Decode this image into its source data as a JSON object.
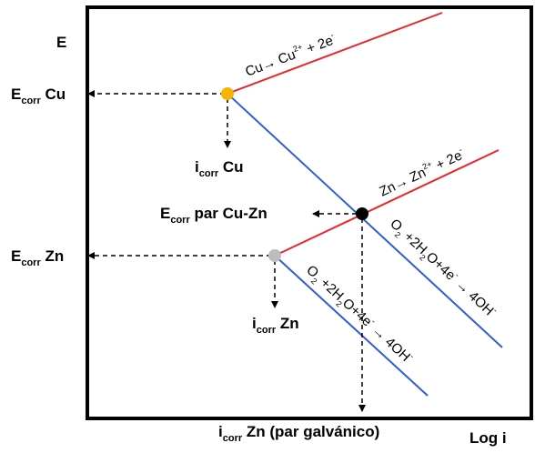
{
  "axes": {
    "y_label": "E",
    "x_label": "Log i"
  },
  "labels": {
    "ecorr_cu": {
      "main": "E",
      "sub": "corr",
      "rest": " Cu"
    },
    "ecorr_zn": {
      "main": "E",
      "sub": "corr",
      "rest": " Zn"
    },
    "icorr_cu": {
      "main": "i",
      "sub": "corr",
      "rest": " Cu"
    },
    "icorr_zn": {
      "main": "i",
      "sub": "corr",
      "rest": " Zn"
    },
    "ecorr_pair": {
      "main": "E",
      "sub": "corr",
      "rest": " par Cu-Zn"
    },
    "icorr_pair": {
      "main": "i",
      "sub": "corr",
      "rest": " Zn (par galvánico)"
    }
  },
  "equations": {
    "cu_oxidation": {
      "a": "Cu→ Cu",
      "sup1": "2+",
      "b": " + 2e",
      "sup2": "-"
    },
    "zn_oxidation": {
      "a": "Zn→ Zn",
      "sup1": "2+",
      "b": " + 2e",
      "sup2": "-"
    },
    "o2_reduction_upper": {
      "a": "O",
      "s1": "2",
      "b": " +2H",
      "s2": "2",
      "c": "O+4e",
      "sup1": "-",
      "d": " → 4OH",
      "sup2": "-"
    },
    "o2_reduction_lower": {
      "a": "O",
      "s1": "2",
      "b": " +2H",
      "s2": "2",
      "c": "O+4e",
      "sup1": "-",
      "d": " → 4OH",
      "sup2": "-"
    }
  },
  "colors": {
    "anodic_line": "#e8262b",
    "cathodic_line": "#2f5dd6",
    "cu_point": "#f5b400",
    "zn_point": "#bdbdbd",
    "pair_point": "#000000",
    "frame": "#000000"
  }
}
